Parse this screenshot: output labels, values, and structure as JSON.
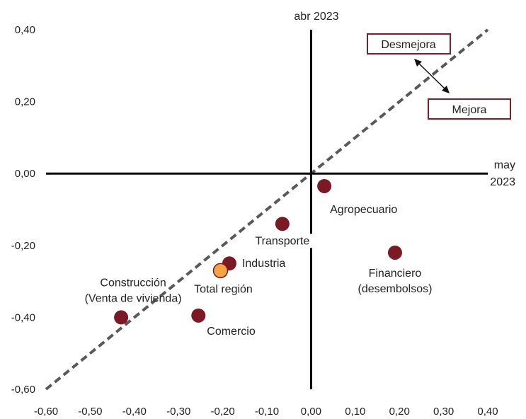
{
  "chart_data": {
    "type": "scatter",
    "x_axis_label_lines": [
      "may",
      "2023"
    ],
    "y_axis_label": "abr 2023",
    "xlim": [
      -0.6,
      0.4
    ],
    "ylim": [
      -0.6,
      0.4
    ],
    "x_ticks": [
      "-0,60",
      "-0,50",
      "-0,40",
      "-0,30",
      "-0,20",
      "-0,10",
      "0,00",
      "0,10",
      "0,20",
      "0,30",
      "0,40"
    ],
    "y_ticks": [
      "0,40",
      "0,20",
      "0,00",
      "-0,20",
      "-0,40",
      "-0,60"
    ],
    "x_tick_values": [
      -0.6,
      -0.5,
      -0.4,
      -0.3,
      -0.2,
      -0.1,
      0.0,
      0.1,
      0.2,
      0.3,
      0.4
    ],
    "y_tick_values": [
      0.4,
      0.2,
      0.0,
      -0.2,
      -0.4,
      -0.6
    ],
    "diagonal_line": {
      "from": [
        -0.6,
        -0.6
      ],
      "to": [
        0.4,
        0.4
      ],
      "style": "dashed",
      "color": "#595959"
    },
    "annotations": [
      {
        "text": "Desmejora",
        "border_color": "#7b1f2a"
      },
      {
        "text": "Mejora",
        "border_color": "#7b1f2a"
      }
    ],
    "points": [
      {
        "label": "Agropecuario",
        "label_lines": [
          "Agropecuario"
        ],
        "x": 0.03,
        "y": -0.035,
        "color": "#7b1a25"
      },
      {
        "label": "Transporte",
        "label_lines": [
          "Transporte"
        ],
        "x": -0.065,
        "y": -0.14,
        "color": "#7b1a25"
      },
      {
        "label": "Industria",
        "label_lines": [
          "Industria"
        ],
        "x": -0.185,
        "y": -0.25,
        "color": "#7b1a25"
      },
      {
        "label": "Total región",
        "label_lines": [
          "Total región"
        ],
        "x": -0.205,
        "y": -0.27,
        "color": "#f5a443"
      },
      {
        "label": "Financiero (desembolsos)",
        "label_lines": [
          "Financiero",
          "(desembolsos)"
        ],
        "x": 0.19,
        "y": -0.22,
        "color": "#7b1a25"
      },
      {
        "label": "Construcción (Venta de vivienda)",
        "label_lines": [
          "Construcción",
          "(Venta de vivienda)"
        ],
        "x": -0.43,
        "y": -0.4,
        "color": "#7b1a25"
      },
      {
        "label": "Comercio",
        "label_lines": [
          "Comercio"
        ],
        "x": -0.255,
        "y": -0.395,
        "color": "#7b1a25"
      }
    ],
    "grid": false,
    "legend": "none"
  }
}
